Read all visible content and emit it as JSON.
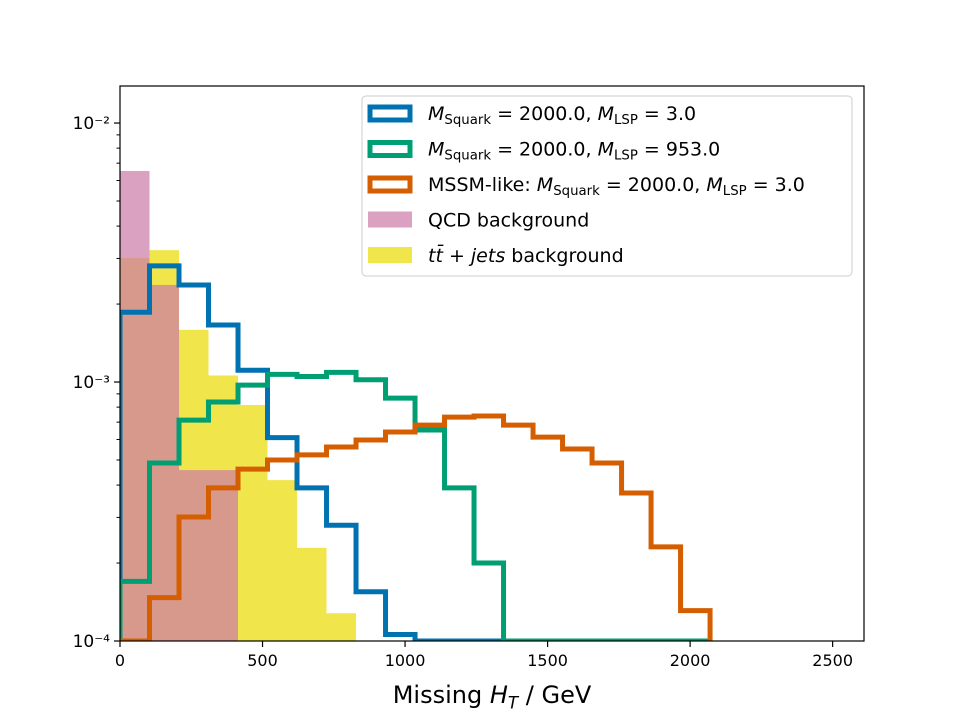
{
  "chart_data": {
    "type": "histogram",
    "xlabel": "Missing HT / GeV",
    "bins": [
      0,
      103.5,
      207,
      310.5,
      414,
      517.5,
      621,
      724.5,
      828,
      931.5,
      1035,
      1138.5,
      1242,
      1345.5,
      1449,
      1552.5,
      1656,
      1759.5,
      1863,
      1966.5,
      2070
    ],
    "series": [
      {
        "name": "MSquark = 2000.0, MLSP = 3.0",
        "color": "#0072b2",
        "histtype": "step",
        "values": [
          0.00186,
          0.00281,
          0.00237,
          0.00166,
          0.00111,
          0.00061,
          0.00039,
          0.00028,
          0.000155,
          0.000106,
          0,
          0,
          0,
          0,
          0,
          0,
          0,
          0,
          0,
          0
        ]
      },
      {
        "name": "MSquark = 2000.0, MLSP = 953.0",
        "color": "#009e73",
        "histtype": "step",
        "values": [
          0.00017,
          0.000487,
          0.000713,
          0.000837,
          0.000973,
          0.00107,
          0.00105,
          0.00109,
          0.00102,
          0.000867,
          0.000653,
          0.00039,
          0.0002,
          0,
          0,
          0,
          0,
          0,
          0,
          0
        ]
      },
      {
        "name": "MSSM-like: MSquark = 2000.0, MLSP = 3.0",
        "color": "#d55e00",
        "histtype": "step",
        "values": [
          0,
          0.000147,
          0.000301,
          0.00039,
          0.000461,
          0.0005,
          0.000523,
          0.000561,
          0.000597,
          0.000641,
          0.000682,
          0.000732,
          0.000739,
          0.000682,
          0.000613,
          0.000551,
          0.000487,
          0.000373,
          0.000231,
          0.000131
        ]
      },
      {
        "name": "QCD background",
        "color": "#cc79a7",
        "histtype": "stepfilled",
        "alpha": 0.7,
        "values": [
          0.00653,
          0.00237,
          0.000457,
          0.000457,
          0,
          0,
          0,
          0,
          0,
          0,
          0,
          0,
          0,
          0,
          0,
          0,
          0,
          0,
          0,
          0
        ]
      },
      {
        "name": "tt̄ + jets background",
        "color": "#f0e442",
        "histtype": "stepfilled",
        "alpha": 0.95,
        "values": [
          0.00301,
          0.00323,
          0.00159,
          0.00106,
          0.000815,
          0.000418,
          0.000229,
          0.000128,
          0,
          0,
          0,
          0,
          0,
          0,
          0,
          0,
          0,
          0,
          0,
          0
        ]
      }
    ],
    "xlim": [
      0,
      2610
    ],
    "xticks": [
      0,
      500,
      1000,
      1500,
      2000,
      2500
    ],
    "ylim": [
      0.0001,
      0.0139
    ],
    "ylog": true,
    "yticks": [
      {
        "value": 0.0001,
        "label": "10⁻⁴"
      },
      {
        "value": 0.001,
        "label": "10⁻³"
      },
      {
        "value": 0.01,
        "label": "10⁻²"
      }
    ],
    "yminorticks": [
      0.0002,
      0.0003,
      0.0004,
      0.0005,
      0.0006,
      0.0007,
      0.0008,
      0.0009,
      0.002,
      0.003,
      0.004,
      0.005,
      0.006,
      0.007,
      0.008,
      0.009
    ],
    "legend": "upper right"
  }
}
